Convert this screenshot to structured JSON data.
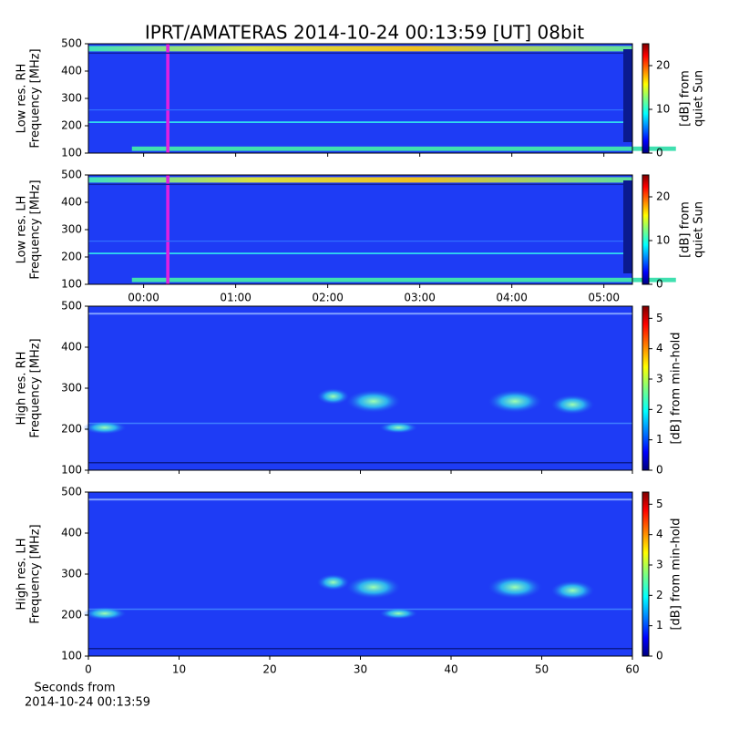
{
  "chart_data": [
    {
      "type": "heatmap",
      "title": "IPRT/AMATERAS 2014-10-24 00:13:59 [UT]   08bit",
      "ylabel": [
        "Low res. RH",
        "Frequency [MHz]"
      ],
      "ylim": [
        100,
        500
      ],
      "yticks": [
        100,
        200,
        300,
        400,
        500
      ],
      "xlim": [
        -0.6,
        5.31
      ],
      "colorbar": {
        "label": [
          "[dB] from",
          "quiet Sun"
        ],
        "lim": [
          0,
          25
        ],
        "ticks": [
          0,
          10,
          20
        ]
      }
    },
    {
      "type": "heatmap",
      "ylabel": [
        "Low res. LH",
        "Frequency [MHz]"
      ],
      "ylim": [
        100,
        500
      ],
      "yticks": [
        100,
        200,
        300,
        400,
        500
      ],
      "xlim": [
        -0.6,
        5.31
      ],
      "xticks": [
        {
          "value": 0,
          "label": "00:00"
        },
        {
          "value": 1,
          "label": "01:00"
        },
        {
          "value": 2,
          "label": "02:00"
        },
        {
          "value": 3,
          "label": "03:00"
        },
        {
          "value": 4,
          "label": "04:00"
        },
        {
          "value": 5,
          "label": "05:00"
        }
      ],
      "colorbar": {
        "label": [
          "[dB] from",
          "quiet Sun"
        ],
        "lim": [
          0,
          25
        ],
        "ticks": [
          0,
          10,
          20
        ]
      }
    },
    {
      "type": "heatmap",
      "ylabel": [
        "High res. RH",
        "Frequency [MHz]"
      ],
      "ylim": [
        100,
        500
      ],
      "yticks": [
        100,
        200,
        300,
        400,
        500
      ],
      "xlim": [
        0,
        60
      ],
      "colorbar": {
        "label": [
          "[dB] from min-hold"
        ],
        "lim": [
          0,
          5.4
        ],
        "ticks": [
          0,
          1,
          2,
          3,
          4,
          5
        ]
      }
    },
    {
      "type": "heatmap",
      "ylabel": [
        "High res. LH",
        "Frequency [MHz]"
      ],
      "ylim": [
        100,
        500
      ],
      "yticks": [
        100,
        200,
        300,
        400,
        500
      ],
      "xlim": [
        0,
        60
      ],
      "xticks": [
        0,
        10,
        20,
        30,
        40,
        50,
        60
      ],
      "xlabel": [
        "Seconds from",
        "2014-10-24 00:13:59"
      ],
      "colorbar": {
        "label": [
          "[dB] from min-hold"
        ],
        "lim": [
          0,
          5.4
        ],
        "ticks": [
          0,
          1,
          2,
          3,
          4,
          5
        ]
      }
    }
  ]
}
